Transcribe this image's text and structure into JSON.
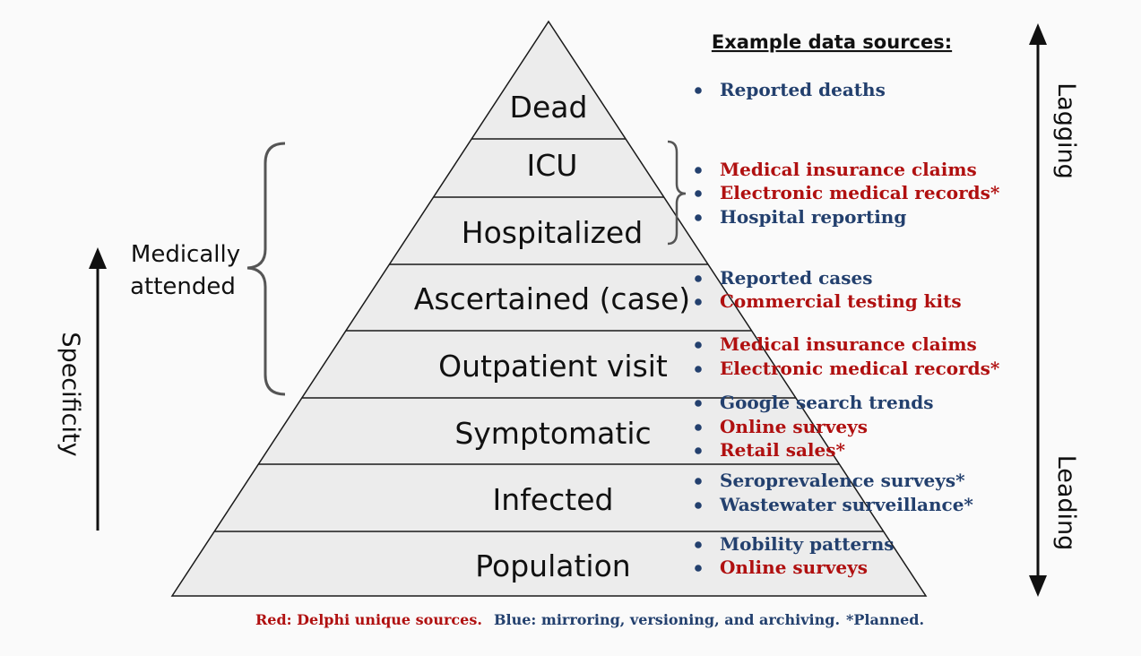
{
  "colors": {
    "red": "#b01010",
    "blue": "#23406e",
    "pyramid_fill": "#ececec",
    "pyramid_stroke": "#1a1a1a",
    "brace": "#555555"
  },
  "heading": "Example data sources:",
  "tiers": [
    {
      "label": "Dead"
    },
    {
      "label": "ICU"
    },
    {
      "label": "Hospitalized"
    },
    {
      "label": "Ascertained (case)"
    },
    {
      "label": "Outpatient visit"
    },
    {
      "label": "Symptomatic"
    },
    {
      "label": "Infected"
    },
    {
      "label": "Population"
    }
  ],
  "source_groups": [
    {
      "items": [
        {
          "text": "Reported deaths",
          "color": "blue"
        }
      ]
    },
    {
      "items": [
        {
          "text": "Medical insurance claims",
          "color": "red"
        },
        {
          "text": "Electronic medical records*",
          "color": "red"
        },
        {
          "text": "Hospital reporting",
          "color": "blue"
        }
      ]
    },
    {
      "items": [
        {
          "text": "Reported cases",
          "color": "blue"
        },
        {
          "text": "Commercial testing kits",
          "color": "red"
        }
      ]
    },
    {
      "items": [
        {
          "text": "Medical insurance claims",
          "color": "red"
        },
        {
          "text": "Electronic medical records*",
          "color": "red"
        }
      ]
    },
    {
      "items": [
        {
          "text": "Google search trends",
          "color": "blue"
        },
        {
          "text": "Online surveys",
          "color": "red"
        },
        {
          "text": "Retail sales*",
          "color": "red"
        }
      ]
    },
    {
      "items": [
        {
          "text": "Seroprevalence surveys*",
          "color": "blue"
        },
        {
          "text": "Wastewater surveillance*",
          "color": "blue"
        }
      ]
    },
    {
      "items": [
        {
          "text": "Mobility patterns",
          "color": "blue"
        },
        {
          "text": "Online surveys",
          "color": "red"
        }
      ]
    }
  ],
  "medically_attended": [
    "Medically",
    "attended"
  ],
  "specificity_label": "Specificity",
  "lagging_label": "Lagging",
  "leading_label": "Leading",
  "legend": {
    "red": "Red: Delphi unique sources.",
    "blue": "Blue: mirroring, versioning, and archiving.",
    "planned": "*Planned."
  }
}
